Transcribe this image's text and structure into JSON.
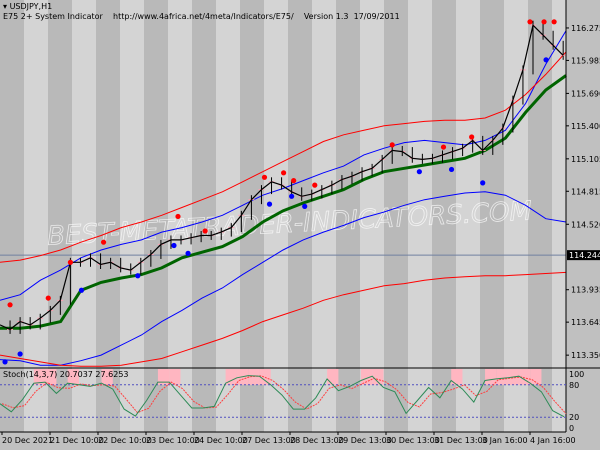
{
  "header": {
    "symbol": "USDJPY,H1",
    "indicator_title": "E75 2+ System Indicator",
    "indicator_url": "http://www.4africa.net/4meta/Indicators/E75/",
    "version": "Version 1.3",
    "date": "17/09/2011"
  },
  "watermark": "BEST-METATRADER-INDICATORS.COM",
  "colors": {
    "stripe_dark": "#b9b9b9",
    "stripe_light": "#d4d4d4",
    "price": "#000000",
    "green": "#006400",
    "red": "#ff0000",
    "blue": "#0000ff",
    "stoch_k": "#2e8b57",
    "stoch_d": "#ff4040",
    "overbought": "#ffb6c1",
    "oversold": "#add8e6"
  },
  "chart_data": [
    {
      "type": "line",
      "title": "USDJPY,H1",
      "ylim": [
        113.244,
        116.525
      ],
      "yticks": [
        "116.275",
        "115.985",
        "115.690",
        "115.400",
        "115.105",
        "114.815",
        "114.520",
        "113.935",
        "113.645",
        "113.350"
      ],
      "current_price": "114.244",
      "xticks": [
        "20 Dec 2021",
        "21 Dec 10:00",
        "22 Dec 10:00",
        "23 Dec 10:00",
        "24 Dec 10:00",
        "27 Dec 13:00",
        "28 Dec 13:00",
        "29 Dec 13:00",
        "30 Dec 13:00",
        "31 Dec 13:00",
        "3 Jan 16:00",
        "4 Jan 16:00"
      ],
      "close": [
        113.62,
        113.58,
        113.65,
        113.62,
        113.68,
        113.75,
        113.84,
        114.18,
        114.18,
        114.22,
        114.16,
        114.18,
        114.13,
        114.11,
        114.18,
        114.25,
        114.34,
        114.38,
        114.38,
        114.4,
        114.42,
        114.42,
        114.45,
        114.49,
        114.6,
        114.74,
        114.83,
        114.9,
        114.87,
        114.81,
        114.77,
        114.79,
        114.83,
        114.87,
        114.92,
        114.95,
        114.99,
        115.02,
        115.1,
        115.18,
        115.17,
        115.11,
        115.1,
        115.11,
        115.14,
        115.17,
        115.2,
        115.27,
        115.18,
        115.27,
        115.38,
        115.63,
        115.9,
        116.3,
        116.21,
        116.12,
        116.03
      ],
      "lines": [
        {
          "color": "green",
          "values": [
            113.59,
            113.59,
            113.61,
            113.65,
            113.93,
            114.0,
            114.04,
            114.07,
            114.13,
            114.22,
            114.27,
            114.32,
            114.41,
            114.54,
            114.64,
            114.71,
            114.77,
            114.83,
            114.92,
            114.99,
            115.02,
            115.05,
            115.08,
            115.11,
            115.18,
            115.29,
            115.52,
            115.72,
            115.85
          ]
        },
        {
          "color": "blue",
          "values": [
            113.84,
            113.89,
            114.02,
            114.11,
            114.22,
            114.29,
            114.34,
            114.38,
            114.45,
            114.49,
            114.54,
            114.6,
            114.69,
            114.78,
            114.84,
            114.91,
            114.98,
            115.04,
            115.14,
            115.2,
            115.25,
            115.27,
            115.25,
            115.23,
            115.27,
            115.36,
            115.6,
            115.95,
            116.25
          ]
        },
        {
          "color": "red",
          "values": [
            114.18,
            114.2,
            114.24,
            114.29,
            114.36,
            114.42,
            114.49,
            114.54,
            114.6,
            114.67,
            114.74,
            114.81,
            114.9,
            114.99,
            115.08,
            115.17,
            115.26,
            115.32,
            115.36,
            115.4,
            115.42,
            115.44,
            115.45,
            115.45,
            115.47,
            115.54,
            115.68,
            115.86,
            116.06
          ]
        },
        {
          "color": "blue",
          "values": [
            113.31,
            113.3,
            113.26,
            113.26,
            113.3,
            113.35,
            113.44,
            113.53,
            113.65,
            113.75,
            113.86,
            113.95,
            114.07,
            114.18,
            114.29,
            114.38,
            114.45,
            114.51,
            114.58,
            114.63,
            114.69,
            114.74,
            114.77,
            114.8,
            114.81,
            114.78,
            114.69,
            114.57,
            114.54
          ]
        },
        {
          "color": "red",
          "values": [
            113.35,
            113.32,
            113.29,
            113.26,
            113.25,
            113.25,
            113.26,
            113.29,
            113.32,
            113.38,
            113.44,
            113.5,
            113.57,
            113.65,
            113.71,
            113.77,
            113.84,
            113.89,
            113.93,
            113.97,
            113.99,
            114.02,
            114.04,
            114.05,
            114.06,
            114.06,
            114.07,
            114.08,
            114.09
          ]
        }
      ],
      "sell_dots": [
        [
          1,
          113.8
        ],
        [
          4.8,
          113.86
        ],
        [
          7,
          114.18
        ],
        [
          10.3,
          114.36
        ],
        [
          17.7,
          114.59
        ],
        [
          20.4,
          114.46
        ],
        [
          26.3,
          114.94
        ],
        [
          28.2,
          114.98
        ],
        [
          29.2,
          114.91
        ],
        [
          31.3,
          114.87
        ],
        [
          39,
          115.23
        ],
        [
          44.1,
          115.21
        ],
        [
          46.9,
          115.3
        ],
        [
          52.7,
          116.33
        ],
        [
          54.1,
          116.33
        ],
        [
          55.1,
          116.33
        ]
      ],
      "buy_dots": [
        [
          0.5,
          113.29
        ],
        [
          2,
          113.36
        ],
        [
          8.1,
          113.93
        ],
        [
          13.7,
          114.06
        ],
        [
          17.3,
          114.33
        ],
        [
          18.7,
          114.26
        ],
        [
          26.8,
          114.7
        ],
        [
          29,
          114.77
        ],
        [
          30.3,
          114.68
        ],
        [
          41.7,
          114.99
        ],
        [
          44.9,
          115.01
        ],
        [
          48,
          114.89
        ],
        [
          54.3,
          115.99
        ]
      ]
    },
    {
      "type": "line",
      "title": "Stoch(14,3,7) 20.7037 27.6253",
      "ylim": [
        0,
        100
      ],
      "levels": [
        80,
        20
      ],
      "yticks": [
        "100",
        "80",
        "20",
        "0"
      ],
      "k": [
        45,
        30,
        53,
        83,
        85,
        64,
        83,
        80,
        77,
        83,
        72,
        35,
        22,
        51,
        85,
        85,
        61,
        37,
        37,
        40,
        83,
        93,
        97,
        96,
        80,
        61,
        35,
        35,
        56,
        91,
        69,
        77,
        88,
        96,
        75,
        67,
        27,
        51,
        75,
        56,
        88,
        72,
        48,
        88,
        91,
        93,
        96,
        83,
        67,
        32,
        21
      ]
    }
  ]
}
